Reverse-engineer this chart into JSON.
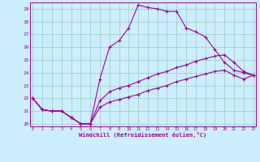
{
  "xlabel": "Windchill (Refroidissement éolien,°C)",
  "bg_color": "#cceeff",
  "line_color": "#990099",
  "grid_color": "#99ccbb",
  "xlim_min": 0,
  "xlim_max": 23,
  "ylim_min": 20,
  "ylim_max": 29.5,
  "xticks": [
    0,
    1,
    2,
    3,
    4,
    5,
    6,
    7,
    8,
    9,
    10,
    11,
    12,
    13,
    14,
    15,
    16,
    17,
    18,
    19,
    20,
    21,
    22,
    23
  ],
  "yticks": [
    20,
    21,
    22,
    23,
    24,
    25,
    26,
    27,
    28,
    29
  ],
  "curve1_y": [
    22.0,
    21.1,
    21.0,
    21.0,
    20.5,
    20.0,
    20.0,
    23.5,
    26.0,
    26.5,
    27.5,
    29.3,
    29.1,
    29.0,
    28.8,
    28.8,
    27.5,
    27.2,
    26.8,
    25.8,
    24.8,
    24.2,
    24.0,
    23.8
  ],
  "curve2_y": [
    22.0,
    21.1,
    21.0,
    21.0,
    20.5,
    20.0,
    20.0,
    21.8,
    22.5,
    22.8,
    23.0,
    23.3,
    23.6,
    23.9,
    24.1,
    24.4,
    24.6,
    24.9,
    25.1,
    25.3,
    25.4,
    24.8,
    24.1,
    23.8
  ],
  "curve3_y": [
    22.0,
    21.1,
    21.0,
    21.0,
    20.5,
    20.0,
    20.0,
    21.3,
    21.7,
    21.9,
    22.1,
    22.3,
    22.6,
    22.8,
    23.0,
    23.3,
    23.5,
    23.7,
    23.9,
    24.1,
    24.2,
    23.8,
    23.5,
    23.8
  ]
}
